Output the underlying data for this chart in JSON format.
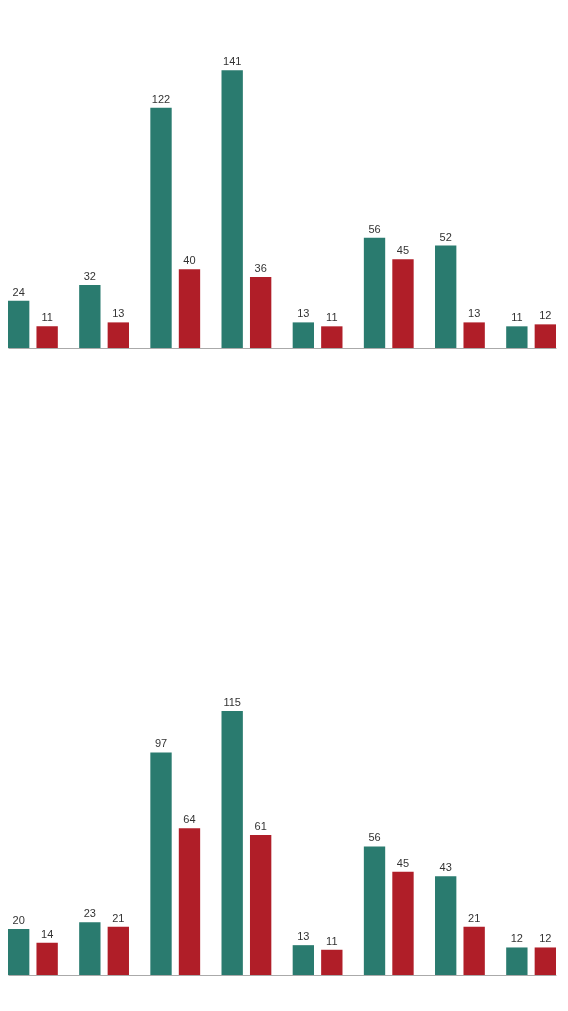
{
  "chart_data": [
    {
      "type": "bar",
      "data_labels": true,
      "categories": [
        null,
        null,
        null,
        null,
        null,
        null,
        null,
        null
      ],
      "series": [
        {
          "color": "#2a7b6f",
          "values": [
            24,
            32,
            122,
            141,
            13,
            56,
            52,
            11
          ]
        },
        {
          "color": "#b01e28",
          "values": [
            11,
            13,
            40,
            36,
            11,
            45,
            13,
            12
          ]
        }
      ]
    },
    {
      "type": "bar",
      "data_labels": true,
      "categories": [
        null,
        null,
        null,
        null,
        null,
        null,
        null,
        null
      ],
      "series": [
        {
          "color": "#2a7b6f",
          "values": [
            20,
            23,
            97,
            115,
            13,
            56,
            43,
            12
          ]
        },
        {
          "color": "#b01e28",
          "values": [
            14,
            21,
            64,
            61,
            11,
            45,
            21,
            12
          ]
        }
      ]
    }
  ]
}
